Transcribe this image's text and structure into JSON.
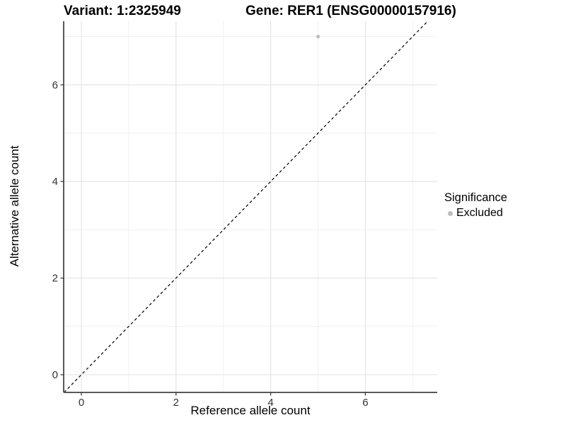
{
  "titles": {
    "variant": "Variant: 1:2325949",
    "gene": "Gene: RER1 (ENSG00000157916)"
  },
  "chart_data": {
    "type": "scatter",
    "title_left": "Variant: 1:2325949",
    "title_right": "Gene: RER1 (ENSG00000157916)",
    "xlabel": "Reference allele count",
    "ylabel": "Alternative allele count",
    "x_ticks": [
      0,
      2,
      4,
      6
    ],
    "y_ticks": [
      0,
      2,
      4,
      6
    ],
    "x_minor_gridlines": [
      1,
      3,
      5,
      7
    ],
    "y_minor_gridlines": [
      1,
      3,
      5,
      7
    ],
    "xlim": [
      -0.37,
      7.52
    ],
    "ylim": [
      -0.37,
      7.32
    ],
    "grid": true,
    "series": [
      {
        "name": "Excluded",
        "color": "#bdbdbd",
        "points": [
          {
            "x": 5,
            "y": 7
          }
        ]
      }
    ],
    "reference_line": {
      "type": "identity",
      "style": "dashed",
      "color": "#000000"
    },
    "legend": {
      "title": "Significance",
      "position": "right",
      "items": [
        {
          "label": "Excluded",
          "color": "#bdbdbd"
        }
      ]
    },
    "colors": {
      "axis_line": "#595959",
      "tick_mark": "#333333",
      "tick_label": "#333333",
      "grid_major": "#e3e3e3",
      "grid_minor": "#efefef",
      "background": "#ffffff"
    }
  }
}
